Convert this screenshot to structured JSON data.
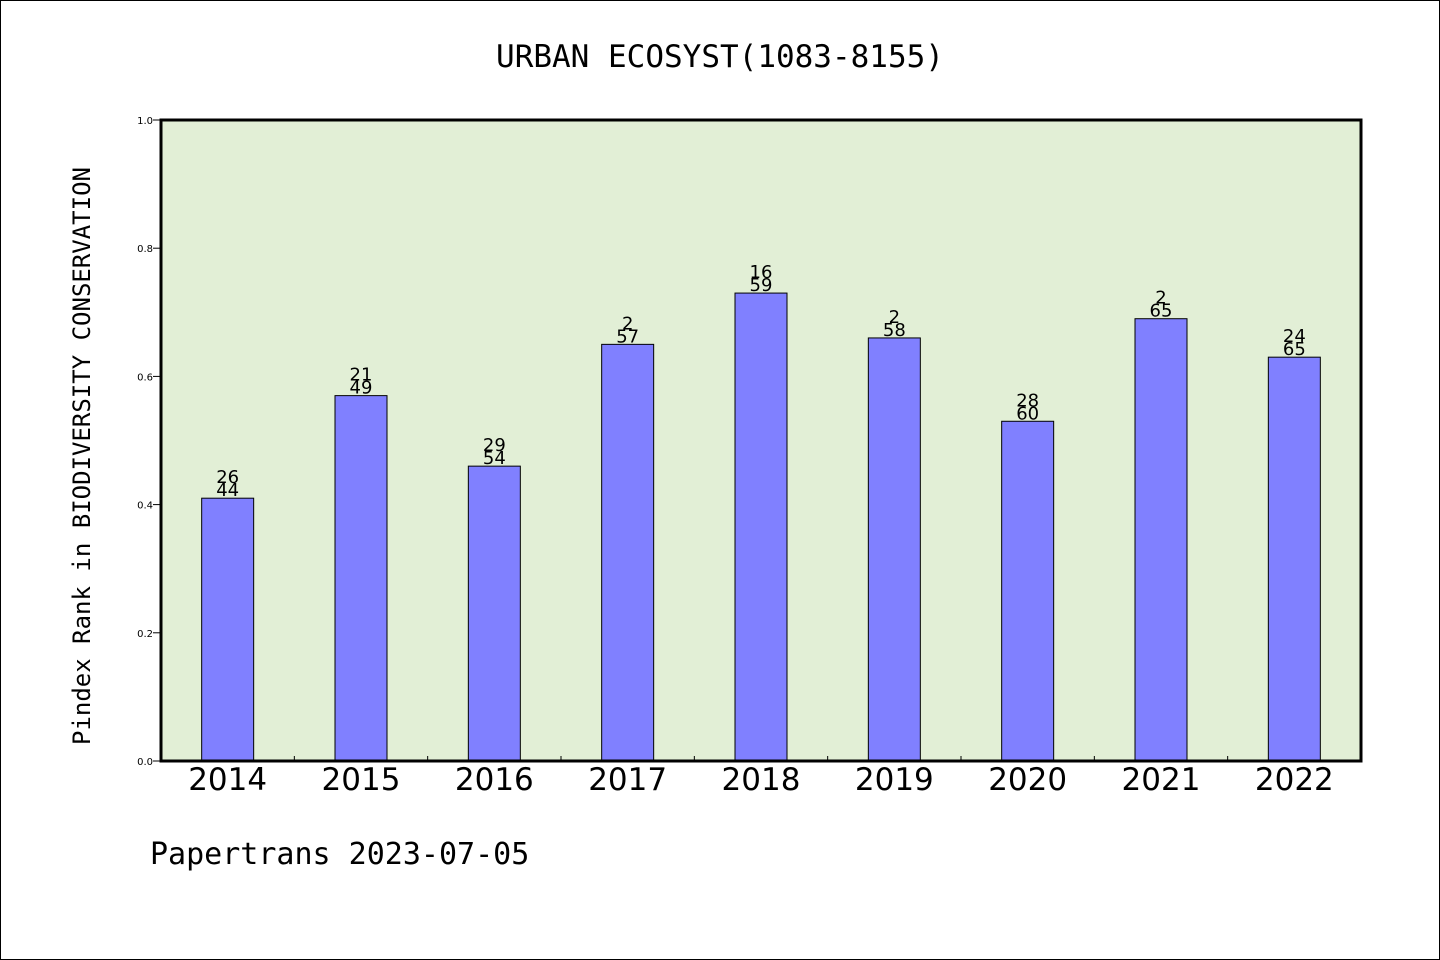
{
  "chart_data": {
    "type": "bar",
    "title": "URBAN ECOSYST(1083-8155)",
    "xlabel": "",
    "ylabel": "Pindex Rank in BIODIVERSITY CONSERVATION",
    "categories": [
      "2014",
      "2015",
      "2016",
      "2017",
      "2018",
      "2019",
      "2020",
      "2021",
      "2022"
    ],
    "values": [
      0.41,
      0.57,
      0.46,
      0.65,
      0.73,
      0.66,
      0.53,
      0.69,
      0.63
    ],
    "bar_labels": [
      [
        "26",
        "44"
      ],
      [
        "21",
        "49"
      ],
      [
        "29",
        "54"
      ],
      [
        "2",
        "57"
      ],
      [
        "16",
        "59"
      ],
      [
        "2",
        "58"
      ],
      [
        "28",
        "60"
      ],
      [
        "2",
        "65"
      ],
      [
        "24",
        "65"
      ]
    ],
    "ylim": [
      0,
      1.0
    ],
    "yticks": [
      "0.0",
      "0.2",
      "0.4",
      "0.6",
      "0.8",
      "1.0"
    ],
    "grid": false,
    "legend": "none",
    "footer": "Papertrans 2023-07-05",
    "colors": {
      "bar_fill": "#8080ff",
      "plot_background": "#e2efd6",
      "axis": "#000000"
    }
  }
}
